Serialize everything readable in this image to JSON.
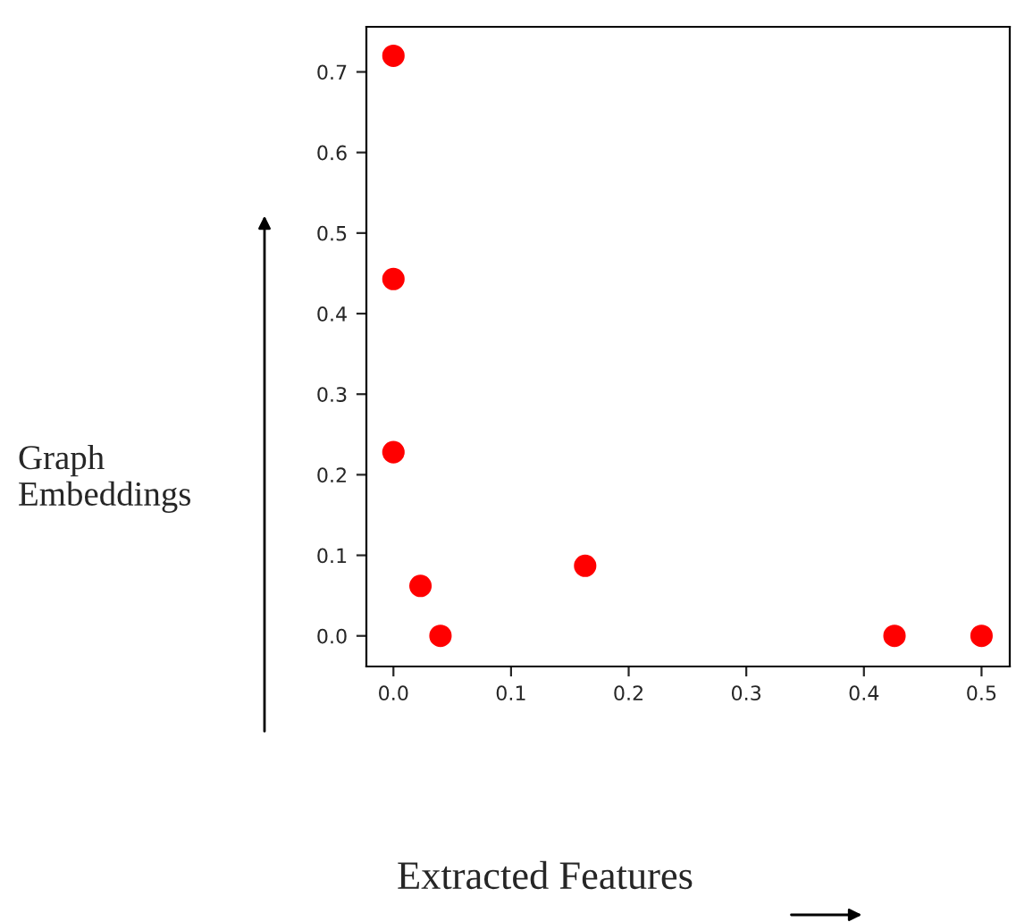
{
  "chart_data": {
    "type": "scatter",
    "xlabel": "Extracted Features",
    "ylabel": "Graph\nEmbeddings",
    "x": [
      0.0,
      0.0,
      0.0,
      0.023,
      0.04,
      0.163,
      0.426,
      0.5
    ],
    "values": [
      0.72,
      0.443,
      0.228,
      0.062,
      0.0,
      0.087,
      0.0,
      0.0
    ],
    "color": "#ff0000",
    "marker": "circle",
    "xlim": [
      -0.023,
      0.524
    ],
    "ylim": [
      -0.038,
      0.756
    ],
    "xticks": [
      {
        "value": 0.0,
        "label": "0.0"
      },
      0.1,
      0.2,
      0.3,
      0.4,
      0.5
    ],
    "yticks": [
      {
        "value": 0.0,
        "label": "0.0"
      },
      0.1,
      0.2,
      0.3,
      0.4,
      0.5,
      0.6,
      0.7
    ],
    "grid": false
  }
}
